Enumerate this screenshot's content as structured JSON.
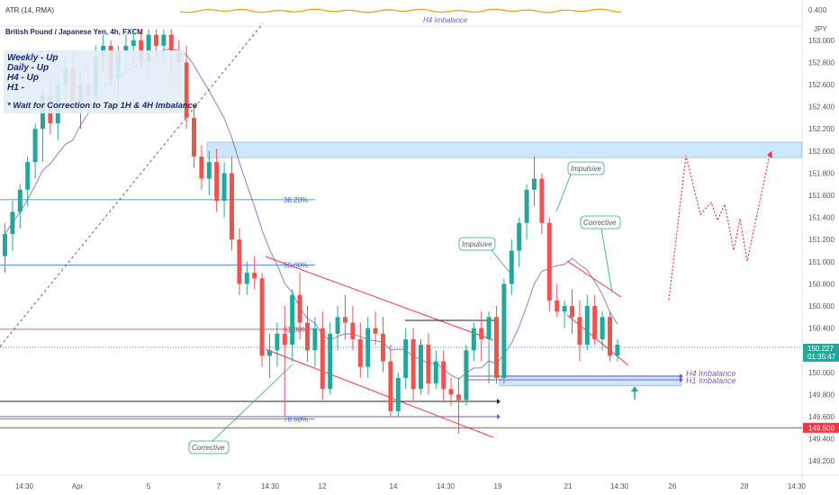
{
  "chart_data": {
    "type": "candlestick",
    "symbol_title": "British Pound / Japanese Yen, 4h, FXCM",
    "currency": "JPY",
    "indicator_label": "ATR (14, RMA)",
    "indicator_value": "0.400",
    "price_axis": {
      "min": 149.08,
      "max": 153.12,
      "ticks": [
        "153.000",
        "152.800",
        "152.600",
        "152.400",
        "152.200",
        "152.000",
        "151.800",
        "151.600",
        "151.400",
        "151.200",
        "151.000",
        "150.800",
        "150.600",
        "150.400",
        "150.200",
        "150.000",
        "149.800",
        "149.600",
        "149.400",
        "149.200"
      ]
    },
    "time_axis": {
      "ticks": [
        "14:30",
        "Apr",
        "5",
        "7",
        "14:30",
        "12",
        "14",
        "14:30",
        "19",
        "21",
        "14:30",
        "26",
        "28",
        "14:30"
      ]
    },
    "current_price": {
      "value": "150.227",
      "countdown": "01:35:47",
      "color": "#26a69a"
    },
    "level_line": {
      "value": "149.500",
      "color": "#f23645"
    },
    "fib_levels": [
      {
        "label": "38.20%",
        "price": 151.56,
        "color": "#2962ff"
      },
      {
        "label": "50.00%",
        "price": 150.97,
        "color": "#2962ff"
      },
      {
        "label": "61.80%",
        "price": 150.39,
        "color": "#e91e63"
      },
      {
        "label": "78.60%",
        "price": 149.58,
        "color": "#2962ff"
      }
    ],
    "zones": [
      {
        "price_top": 152.08,
        "price_bottom": 151.94,
        "color": "#bbdefb"
      },
      {
        "price_top": 149.97,
        "price_bottom": 149.88,
        "color": "#bbdefb"
      }
    ],
    "text_notes": {
      "bias_lines": [
        "Weekly - Up",
        "Daily   - Up",
        "H4       - Up",
        "H1        -"
      ],
      "wait_note": "* Wait for Correction to Tap 1H & 4H Imbalance",
      "h4_top": "H4 Imbalance",
      "h4_imbalance": "H4 Imbalance",
      "h1_imbalance": "H1 Imbalance",
      "callouts": [
        "Impulsive",
        "Impulsive",
        "Corrective",
        "Corrective"
      ]
    },
    "series": [
      {
        "name": "",
        "candles": [
          [
            151.05,
            151.35,
            150.9,
            151.25
          ],
          [
            151.25,
            151.55,
            151.1,
            151.45
          ],
          [
            151.45,
            151.7,
            151.3,
            151.65
          ],
          [
            151.65,
            151.95,
            151.5,
            151.9
          ],
          [
            151.9,
            152.25,
            151.75,
            152.2
          ],
          [
            152.2,
            152.55,
            151.9,
            152.5
          ],
          [
            152.5,
            152.65,
            152.15,
            152.25
          ],
          [
            152.25,
            152.7,
            152.1,
            152.6
          ],
          [
            152.6,
            152.85,
            152.45,
            152.75
          ],
          [
            152.75,
            152.9,
            152.35,
            152.45
          ],
          [
            152.45,
            152.7,
            152.2,
            152.6
          ],
          [
            152.6,
            152.75,
            152.35,
            152.5
          ],
          [
            152.5,
            152.95,
            152.4,
            152.85
          ],
          [
            152.85,
            153.05,
            152.7,
            152.95
          ],
          [
            152.95,
            153.0,
            152.55,
            152.65
          ],
          [
            152.65,
            152.95,
            152.5,
            152.9
          ],
          [
            152.9,
            153.05,
            152.7,
            152.95
          ],
          [
            152.95,
            153.1,
            152.8,
            153.0
          ],
          [
            153.0,
            153.1,
            152.75,
            152.8
          ],
          [
            152.8,
            153.1,
            152.65,
            153.05
          ],
          [
            153.05,
            153.1,
            152.85,
            152.95
          ],
          [
            152.95,
            153.1,
            152.8,
            153.05
          ],
          [
            153.05,
            153.1,
            152.7,
            152.9
          ],
          [
            152.9,
            153.0,
            152.6,
            152.8
          ],
          [
            152.8,
            152.95,
            152.2,
            152.3
          ],
          [
            152.3,
            152.4,
            151.85,
            151.95
          ],
          [
            151.95,
            152.05,
            151.65,
            151.75
          ],
          [
            151.75,
            152.0,
            151.6,
            151.9
          ],
          [
            151.9,
            152.02,
            151.45,
            151.55
          ],
          [
            151.55,
            151.9,
            151.4,
            151.8
          ],
          [
            151.8,
            151.95,
            151.1,
            151.2
          ],
          [
            151.2,
            151.3,
            150.7,
            150.8
          ],
          [
            150.8,
            151.0,
            150.7,
            150.9
          ],
          [
            150.9,
            151.05,
            150.75,
            150.85
          ],
          [
            150.85,
            150.9,
            150.05,
            150.15
          ],
          [
            150.15,
            150.35,
            149.95,
            150.2
          ],
          [
            150.2,
            150.45,
            150.05,
            150.35
          ],
          [
            150.35,
            150.6,
            149.6,
            150.25
          ],
          [
            150.25,
            150.75,
            150.1,
            150.7
          ],
          [
            150.7,
            150.9,
            150.3,
            150.45
          ],
          [
            150.45,
            150.6,
            150.1,
            150.2
          ],
          [
            150.2,
            150.5,
            150.05,
            150.4
          ],
          [
            150.4,
            150.55,
            149.75,
            149.85
          ],
          [
            149.85,
            150.45,
            149.8,
            150.35
          ],
          [
            150.35,
            150.6,
            150.2,
            150.5
          ],
          [
            150.5,
            150.7,
            150.3,
            150.45
          ],
          [
            150.45,
            150.6,
            150.2,
            150.3
          ],
          [
            150.3,
            150.45,
            149.95,
            150.05
          ],
          [
            150.05,
            150.5,
            149.95,
            150.4
          ],
          [
            150.4,
            150.55,
            150.25,
            150.35
          ],
          [
            150.35,
            150.5,
            150.0,
            150.1
          ],
          [
            150.1,
            150.25,
            149.6,
            149.65
          ],
          [
            149.65,
            150.0,
            149.6,
            149.95
          ],
          [
            149.95,
            150.4,
            149.85,
            150.3
          ],
          [
            150.3,
            150.4,
            149.75,
            149.85
          ],
          [
            149.85,
            150.3,
            149.8,
            150.25
          ],
          [
            150.25,
            150.35,
            149.8,
            149.9
          ],
          [
            149.9,
            150.2,
            149.85,
            150.1
          ],
          [
            150.1,
            150.2,
            149.75,
            149.85
          ],
          [
            149.85,
            149.95,
            149.7,
            149.8
          ],
          [
            149.8,
            149.95,
            149.45,
            149.75
          ],
          [
            149.75,
            150.25,
            149.7,
            150.2
          ],
          [
            150.2,
            150.45,
            150.1,
            150.4
          ],
          [
            150.4,
            150.55,
            150.1,
            150.3
          ],
          [
            150.3,
            150.55,
            149.9,
            150.5
          ],
          [
            150.5,
            150.6,
            149.9,
            149.95
          ],
          [
            149.95,
            150.85,
            149.9,
            150.8
          ],
          [
            150.8,
            151.2,
            150.7,
            151.1
          ],
          [
            151.1,
            151.4,
            150.95,
            151.35
          ],
          [
            151.35,
            151.7,
            151.2,
            151.65
          ],
          [
            151.65,
            151.95,
            151.5,
            151.75
          ],
          [
            151.75,
            151.8,
            151.25,
            151.35
          ],
          [
            151.35,
            151.4,
            150.55,
            150.65
          ],
          [
            150.65,
            150.8,
            150.5,
            150.55
          ],
          [
            150.55,
            150.65,
            150.4,
            150.6
          ],
          [
            150.6,
            150.75,
            150.35,
            150.5
          ],
          [
            150.5,
            150.65,
            150.1,
            150.25
          ],
          [
            150.25,
            150.7,
            150.2,
            150.6
          ],
          [
            150.6,
            150.7,
            150.25,
            150.3
          ],
          [
            150.3,
            150.55,
            150.2,
            150.5
          ],
          [
            150.5,
            150.55,
            150.1,
            150.15
          ],
          [
            150.15,
            150.3,
            150.1,
            150.25
          ]
        ]
      }
    ]
  }
}
